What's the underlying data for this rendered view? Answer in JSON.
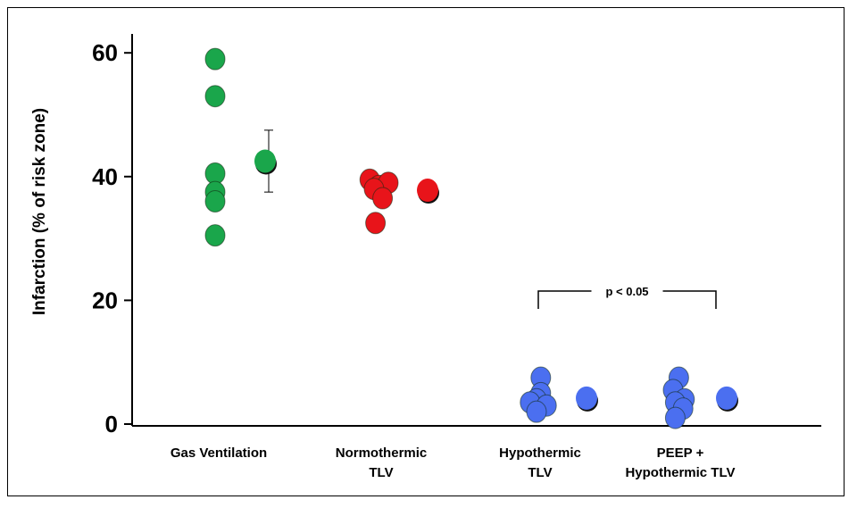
{
  "chart_data": {
    "type": "scatter",
    "title": "",
    "xlabel": "",
    "ylabel": "Infarction (% of risk zone)",
    "ylim": [
      0,
      62
    ],
    "y_ticks": [
      "0",
      "20",
      "40",
      "60"
    ],
    "categories": [
      {
        "lines": [
          "Gas Ventilation"
        ],
        "color": "#1aa64b"
      },
      {
        "lines": [
          "Normothermic",
          "TLV"
        ],
        "color": "#e8141a"
      },
      {
        "lines": [
          "Hypothermic",
          "TLV"
        ],
        "color": "#4b6ff0"
      },
      {
        "lines": [
          "PEEP +",
          "Hypothermic TLV"
        ],
        "color": "#4b6ff0"
      }
    ],
    "series": [
      {
        "category": 0,
        "individual": [
          59,
          53,
          40.5,
          37.5,
          36,
          30.5
        ],
        "individual_offsets": [
          0,
          0,
          0,
          0,
          0,
          0
        ],
        "mean": 42.5,
        "error": [
          37.5,
          47.5
        ]
      },
      {
        "category": 1,
        "individual": [
          39.5,
          38.5,
          39,
          38,
          36.5,
          32.5
        ],
        "individual_offsets": [
          -0.55,
          0.1,
          0.75,
          -0.25,
          0.35,
          -0.15
        ],
        "mean": 37.8,
        "error": null
      },
      {
        "category": 2,
        "individual": [
          7.5,
          5,
          4,
          3.5,
          3,
          2
        ],
        "individual_offsets": [
          0.3,
          0.3,
          0,
          -0.45,
          0.7,
          0
        ],
        "mean": 4.2,
        "error": null
      },
      {
        "category": 3,
        "individual": [
          7.5,
          5.5,
          4,
          3.5,
          2.5,
          1
        ],
        "individual_offsets": [
          0.15,
          -0.25,
          0.55,
          -0.1,
          0.45,
          -0.1
        ],
        "mean": 4.2,
        "error": null
      }
    ],
    "annotations": [
      {
        "text": "p < 0.05",
        "from_category": 2,
        "to_category": 3,
        "y": 21.5
      }
    ]
  }
}
